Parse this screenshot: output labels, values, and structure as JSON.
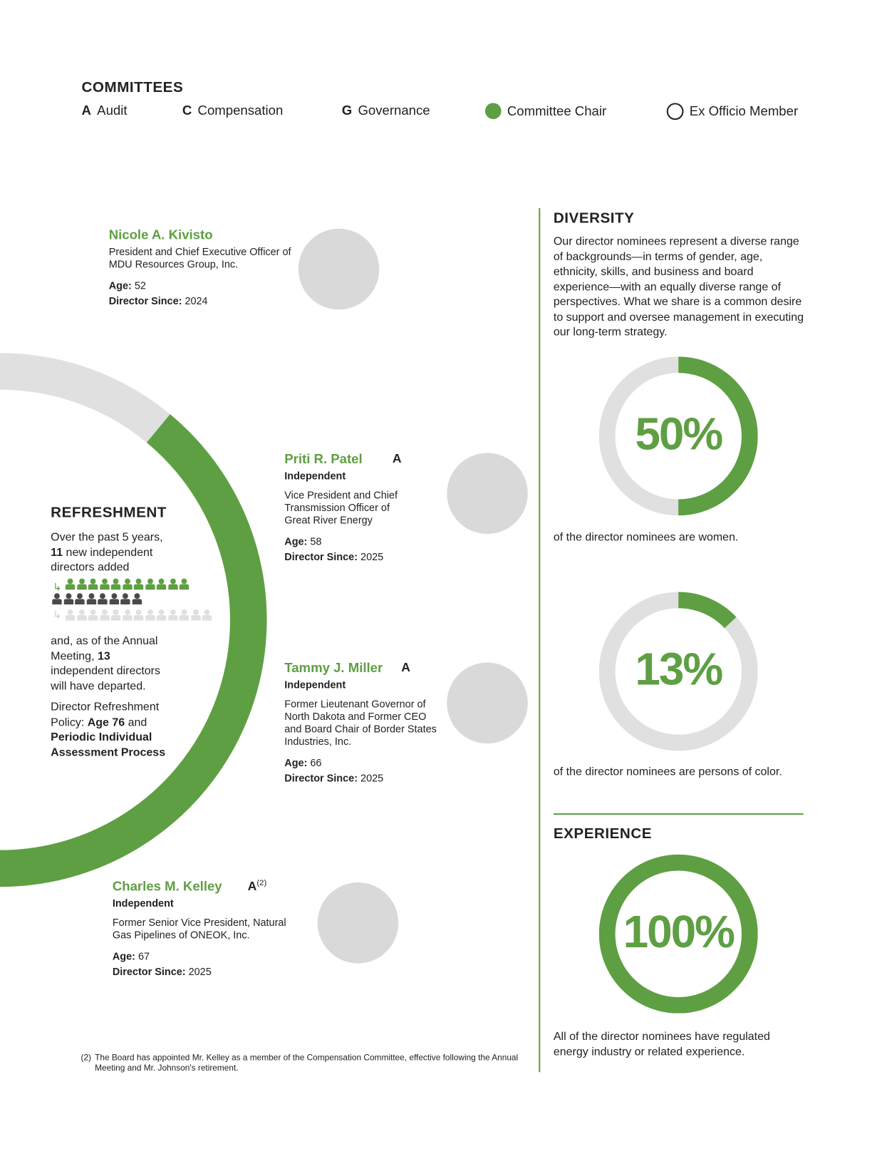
{
  "committees": {
    "title": "COMMITTEES",
    "items": [
      {
        "letter": "A",
        "label": "Audit"
      },
      {
        "letter": "C",
        "label": "Compensation"
      },
      {
        "letter": "G",
        "label": "Governance"
      }
    ],
    "chair_label": "Committee Chair",
    "exofficio_label": "Ex Officio Member"
  },
  "directors": [
    {
      "name": "Nicole A. Kivisto",
      "committee": "",
      "independent": "",
      "title": "President and Chief Executive Officer of MDU Resources Group, Inc.",
      "age_label": "Age:",
      "age": "52",
      "since_label": "Director Since:",
      "since": "2024"
    },
    {
      "name": "Priti R. Patel",
      "committee": "A",
      "independent": "Independent",
      "title": "Vice President and Chief Transmission Officer of Great River Energy",
      "age_label": "Age:",
      "age": "58",
      "since_label": "Director Since:",
      "since": "2025"
    },
    {
      "name": "Tammy J. Miller",
      "committee": "A",
      "independent": "Independent",
      "title": "Former Lieutenant Governor of North Dakota and Former CEO and Board Chair of Border States Industries, Inc.",
      "age_label": "Age:",
      "age": "66",
      "since_label": "Director Since:",
      "since": "2025"
    },
    {
      "name": "Charles M. Kelley",
      "committee": "A",
      "footnote_ref": "(2)",
      "independent": "Independent",
      "title": "Former Senior Vice President, Natural Gas Pipelines of ONEOK, Inc.",
      "age_label": "Age:",
      "age": "67",
      "since_label": "Director Since:",
      "since": "2025"
    }
  ],
  "refreshment": {
    "title": "REFRESHMENT",
    "text1_a": "Over the past 5 years,",
    "text1_num": "11",
    "text1_b": "new independent directors added",
    "text2_a": "and, as of the Annual Meeting,",
    "text2_num": "13",
    "text2_b": "independent directors will have departed.",
    "text3_a": "Director Refreshment Policy:",
    "text3_b": "Age 76",
    "text3_c": "and",
    "text3_d": "Periodic Individual Assessment Process",
    "added": 11,
    "current": 8,
    "departed": 13,
    "arc_green_fraction": 0.78
  },
  "diversity": {
    "title": "DIVERSITY",
    "text": "Our director nominees represent a diverse range of backgrounds—in terms of gender, age, ethnicity, skills, and business and board experience—with an equally diverse range of perspectives. What we share is a common desire to support and oversee management in executing our long-term strategy.",
    "women": {
      "value": 50,
      "label": "50%",
      "caption": "of the director nominees are women."
    },
    "color": {
      "value": 13,
      "label": "13%",
      "caption": "of the director nominees are persons of color."
    }
  },
  "experience": {
    "title": "EXPERIENCE",
    "value": 100,
    "label": "100%",
    "caption": "All of the director nominees have regulated energy industry or related experience."
  },
  "footnote": {
    "marker": "(2)",
    "text": "The Board has appointed Mr. Kelley as a member of the Compensation Committee, effective following the Annual Meeting and Mr. Johnson's retirement."
  },
  "colors": {
    "accent": "#5e9f43",
    "track": "#e0e0e0",
    "dark": "#4a4a4a"
  }
}
